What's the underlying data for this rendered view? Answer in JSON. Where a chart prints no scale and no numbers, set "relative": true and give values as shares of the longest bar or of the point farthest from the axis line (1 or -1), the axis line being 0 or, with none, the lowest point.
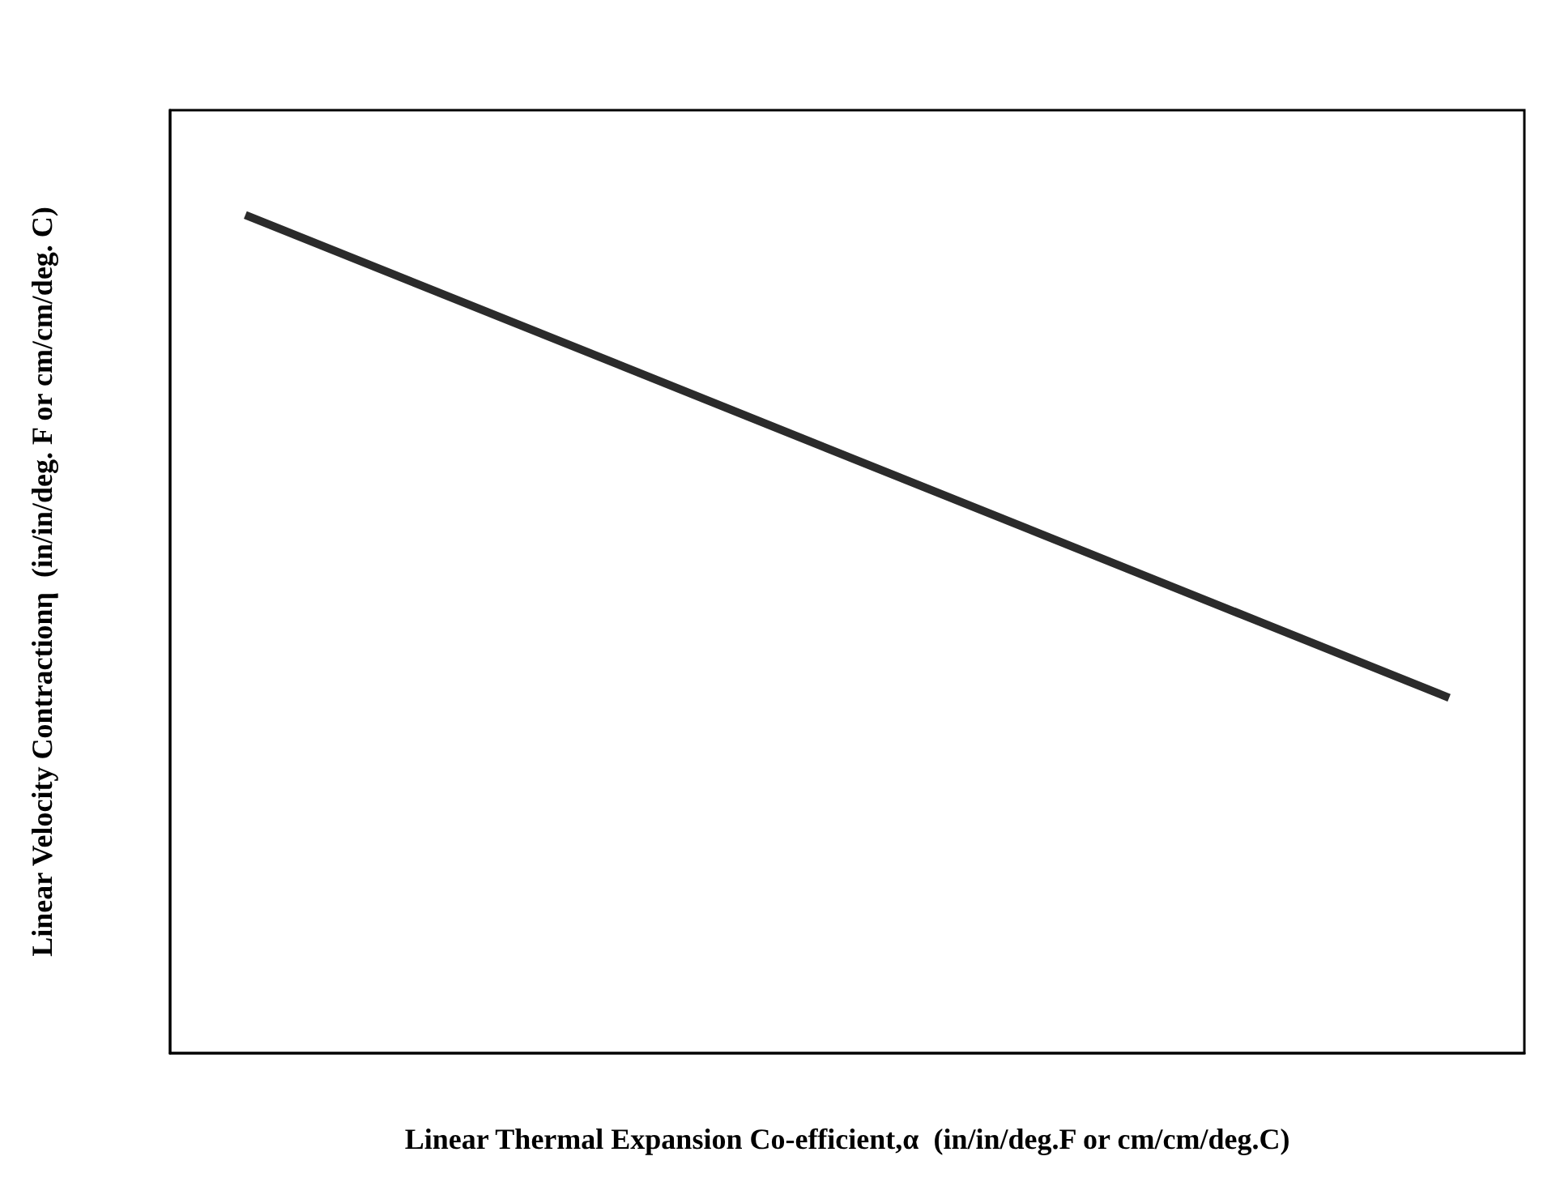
{
  "chart_data": {
    "type": "line",
    "relative": true,
    "xlabel": "Linear Thermal Expansion Co-efficient,α  (in/in/deg.F or cm/cm/deg.C)",
    "ylabel": "Linear Velocity Contractionη  (in/in/deg. F or cm/cm/deg. C)",
    "categories": [
      null,
      null,
      null,
      null,
      null,
      null,
      null,
      null,
      null
    ],
    "series": [
      {
        "color": "#2b2b2b",
        "values": [
          1,
          null,
          null,
          null,
          null,
          null,
          null,
          null,
          0.424
        ]
      }
    ],
    "marker": "none",
    "grid": false
  }
}
